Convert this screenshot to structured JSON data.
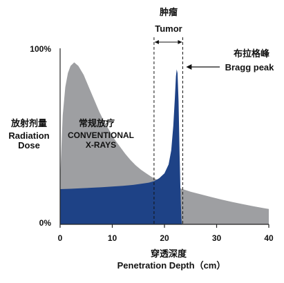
{
  "chart_data": {
    "type": "area",
    "tumor": {
      "label_cn": "肿瘤",
      "label_en": "Tumor",
      "x_range": [
        18,
        23.5
      ]
    },
    "bragg": {
      "label_cn": "布拉格峰",
      "label_en": "Bragg peak",
      "x": 22.3,
      "y": 0.88
    },
    "conventional": {
      "label_cn": "常规放疗",
      "label_line1": "CONVENTIONAL",
      "label_line2": "X-RAYS"
    },
    "ylabel": {
      "cn": "放射剂量",
      "en_line1": "Radiation",
      "en_line2": "Dose"
    },
    "xlabel": {
      "cn": "穿透深度",
      "en": "Penetration Depth（cm）"
    },
    "xlim": [
      0,
      40
    ],
    "ylim": [
      0,
      1
    ],
    "x_ticks": [
      0,
      10,
      20,
      30,
      40
    ],
    "x_tick_labels": [
      "0",
      "10",
      "20",
      "30",
      "40"
    ],
    "y_tick_labels": [
      "0%",
      "100%"
    ],
    "series": [
      {
        "fill": "#9e9fa2",
        "points": [
          [
            0,
            0.26
          ],
          [
            0.5,
            0.62
          ],
          [
            1,
            0.78
          ],
          [
            1.5,
            0.86
          ],
          [
            2,
            0.9
          ],
          [
            2.7,
            0.92
          ],
          [
            3.5,
            0.9
          ],
          [
            4.5,
            0.85
          ],
          [
            5.5,
            0.78
          ],
          [
            6.5,
            0.71
          ],
          [
            7.5,
            0.64
          ],
          [
            8.5,
            0.58
          ],
          [
            9.5,
            0.53
          ],
          [
            10.5,
            0.48
          ],
          [
            11.5,
            0.44
          ],
          [
            12.5,
            0.4
          ],
          [
            13.5,
            0.365
          ],
          [
            14.5,
            0.335
          ],
          [
            15.5,
            0.31
          ],
          [
            16.5,
            0.29
          ],
          [
            17.5,
            0.27
          ],
          [
            18.5,
            0.255
          ],
          [
            19.5,
            0.24
          ],
          [
            20.5,
            0.23
          ],
          [
            21.5,
            0.22
          ],
          [
            22.5,
            0.21
          ],
          [
            23.5,
            0.2
          ],
          [
            25,
            0.185
          ],
          [
            27,
            0.17
          ],
          [
            29,
            0.155
          ],
          [
            31,
            0.14
          ],
          [
            33,
            0.127
          ],
          [
            35,
            0.115
          ],
          [
            37,
            0.103
          ],
          [
            39,
            0.092
          ],
          [
            40,
            0.087
          ]
        ]
      },
      {
        "fill": "#1e4286",
        "points": [
          [
            0,
            0.2
          ],
          [
            2,
            0.202
          ],
          [
            4,
            0.205
          ],
          [
            6,
            0.208
          ],
          [
            8,
            0.211
          ],
          [
            10,
            0.215
          ],
          [
            12,
            0.219
          ],
          [
            14,
            0.224
          ],
          [
            16,
            0.232
          ],
          [
            17,
            0.237
          ],
          [
            18,
            0.245
          ],
          [
            19,
            0.262
          ],
          [
            20,
            0.29
          ],
          [
            20.8,
            0.34
          ],
          [
            21.3,
            0.42
          ],
          [
            21.7,
            0.56
          ],
          [
            22,
            0.72
          ],
          [
            22.2,
            0.84
          ],
          [
            22.35,
            0.88
          ],
          [
            22.5,
            0.86
          ],
          [
            22.7,
            0.7
          ],
          [
            22.9,
            0.4
          ],
          [
            23.1,
            0.15
          ],
          [
            23.25,
            0.03
          ],
          [
            23.35,
            0
          ]
        ]
      }
    ]
  }
}
